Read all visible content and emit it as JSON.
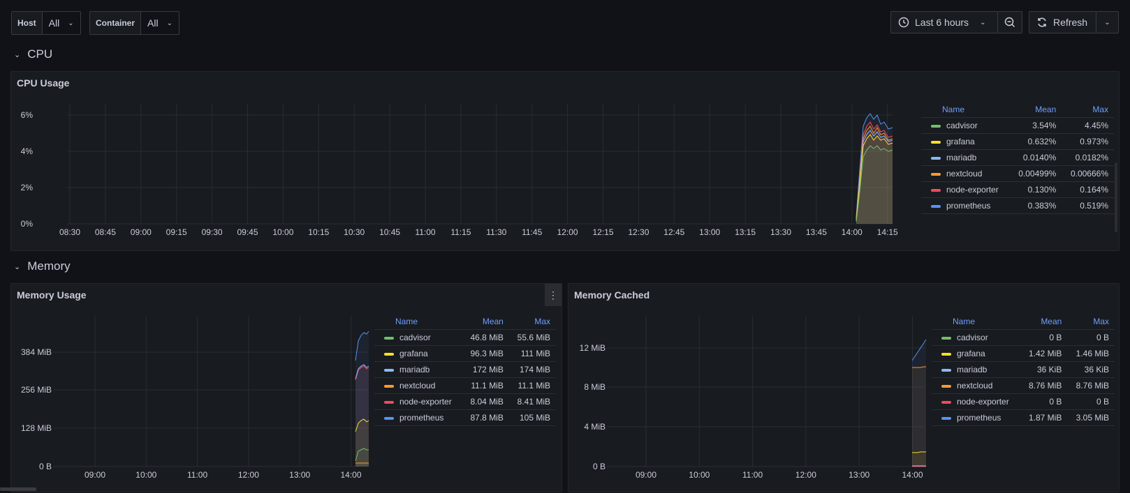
{
  "variables": [
    {
      "label": "Host",
      "value": "All"
    },
    {
      "label": "Container",
      "value": "All"
    }
  ],
  "toolbar": {
    "time_range": "Last 6 hours",
    "refresh_label": "Refresh"
  },
  "rows": {
    "cpu": "CPU",
    "memory": "Memory"
  },
  "colors": {
    "cadvisor": "#73bf69",
    "grafana": "#fade2a",
    "mariadb": "#8ab8ff",
    "nextcloud": "#ff9830",
    "node-exporter": "#f2495c",
    "prometheus": "#5794f2"
  },
  "legend_headers": {
    "name": "Name",
    "mean": "Mean",
    "max": "Max"
  },
  "panels": {
    "cpu_usage": {
      "title": "CPU Usage",
      "y_ticks": [
        "6%",
        "4%",
        "2%",
        "0%"
      ],
      "x_ticks": [
        "08:30",
        "08:45",
        "09:00",
        "09:15",
        "09:30",
        "09:45",
        "10:00",
        "10:15",
        "10:30",
        "10:45",
        "11:00",
        "11:15",
        "11:30",
        "11:45",
        "12:00",
        "12:15",
        "12:30",
        "12:45",
        "13:00",
        "13:15",
        "13:30",
        "13:45",
        "14:00",
        "14:15"
      ],
      "legend": [
        {
          "name": "cadvisor",
          "mean": "3.54%",
          "max": "4.45%"
        },
        {
          "name": "grafana",
          "mean": "0.632%",
          "max": "0.973%"
        },
        {
          "name": "mariadb",
          "mean": "0.0140%",
          "max": "0.0182%"
        },
        {
          "name": "nextcloud",
          "mean": "0.00499%",
          "max": "0.00666%"
        },
        {
          "name": "node-exporter",
          "mean": "0.130%",
          "max": "0.164%"
        },
        {
          "name": "prometheus",
          "mean": "0.383%",
          "max": "0.519%"
        }
      ]
    },
    "memory_usage": {
      "title": "Memory Usage",
      "y_ticks": [
        "384 MiB",
        "256 MiB",
        "128 MiB",
        "0 B"
      ],
      "x_ticks": [
        "09:00",
        "10:00",
        "11:00",
        "12:00",
        "13:00",
        "14:00"
      ],
      "legend": [
        {
          "name": "cadvisor",
          "mean": "46.8 MiB",
          "max": "55.6 MiB"
        },
        {
          "name": "grafana",
          "mean": "96.3 MiB",
          "max": "111 MiB"
        },
        {
          "name": "mariadb",
          "mean": "172 MiB",
          "max": "174 MiB"
        },
        {
          "name": "nextcloud",
          "mean": "11.1 MiB",
          "max": "11.1 MiB"
        },
        {
          "name": "node-exporter",
          "mean": "8.04 MiB",
          "max": "8.41 MiB"
        },
        {
          "name": "prometheus",
          "mean": "87.8 MiB",
          "max": "105 MiB"
        }
      ]
    },
    "memory_cached": {
      "title": "Memory Cached",
      "y_ticks": [
        "12 MiB",
        "8 MiB",
        "4 MiB",
        "0 B"
      ],
      "x_ticks": [
        "09:00",
        "10:00",
        "11:00",
        "12:00",
        "13:00",
        "14:00"
      ],
      "legend": [
        {
          "name": "cadvisor",
          "mean": "0 B",
          "max": "0 B"
        },
        {
          "name": "grafana",
          "mean": "1.42 MiB",
          "max": "1.46 MiB"
        },
        {
          "name": "mariadb",
          "mean": "36 KiB",
          "max": "36 KiB"
        },
        {
          "name": "nextcloud",
          "mean": "8.76 MiB",
          "max": "8.76 MiB"
        },
        {
          "name": "node-exporter",
          "mean": "0 B",
          "max": "0 B"
        },
        {
          "name": "prometheus",
          "mean": "1.87 MiB",
          "max": "3.05 MiB"
        }
      ]
    }
  }
}
